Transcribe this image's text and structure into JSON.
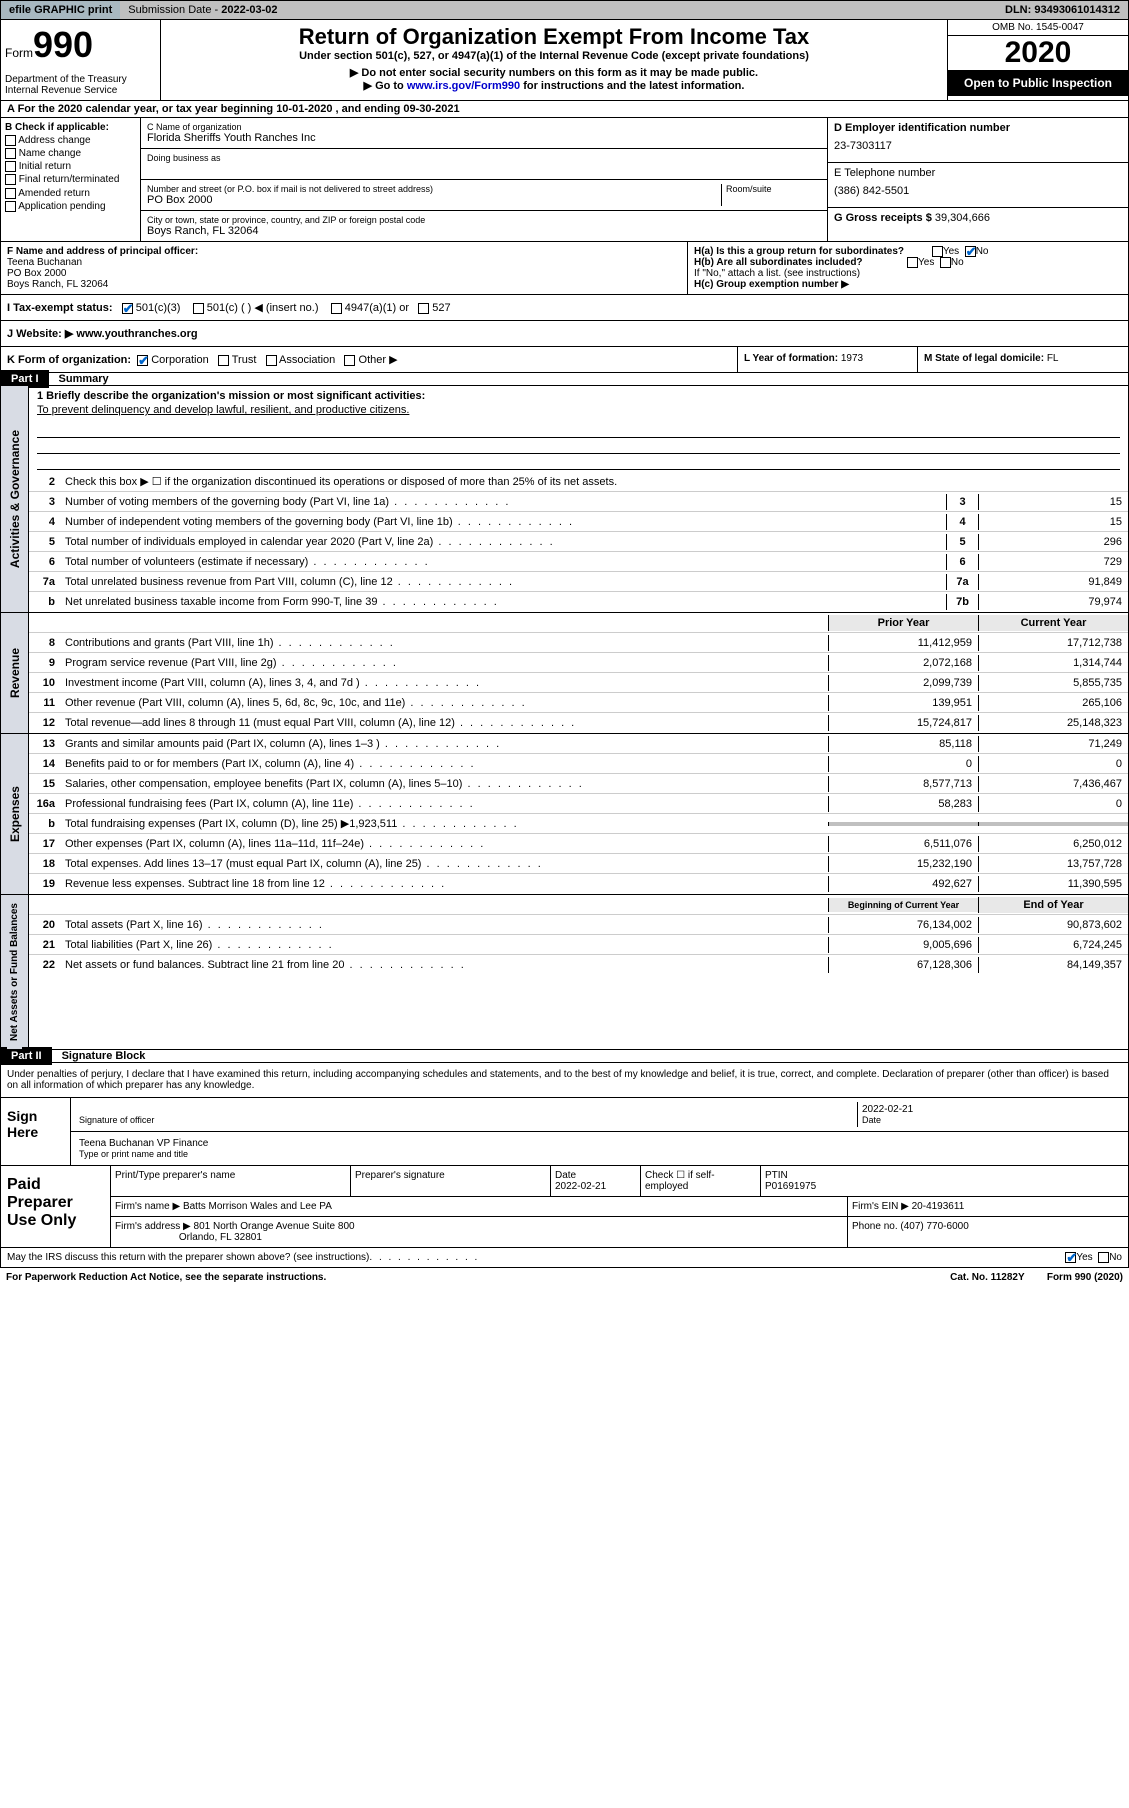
{
  "topbar": {
    "efile": "efile GRAPHIC print",
    "submission_label": "Submission Date - ",
    "submission_date": "2022-03-02",
    "dln_label": "DLN: ",
    "dln": "93493061014312"
  },
  "header": {
    "form_word": "Form",
    "form_num": "990",
    "dept": "Department of the Treasury\nInternal Revenue Service",
    "title": "Return of Organization Exempt From Income Tax",
    "sub1": "Under section 501(c), 527, or 4947(a)(1) of the Internal Revenue Code (except private foundations)",
    "sub2": "▶ Do not enter social security numbers on this form as it may be made public.",
    "sub3_pre": "▶ Go to ",
    "sub3_link": "www.irs.gov/Form990",
    "sub3_post": " for instructions and the latest information.",
    "omb": "OMB No. 1545-0047",
    "year": "2020",
    "open_pub": "Open to Public Inspection"
  },
  "row_a": "A   For the 2020 calendar year, or tax year beginning 10-01-2020     , and ending 09-30-2021",
  "col_b": {
    "title": "B Check if applicable:",
    "items": [
      "Address change",
      "Name change",
      "Initial return",
      "Final return/terminated",
      "Amended return",
      "Application pending"
    ]
  },
  "col_c": {
    "name_label": "C Name of organization",
    "name": "Florida Sheriffs Youth Ranches Inc",
    "dba_label": "Doing business as",
    "dba": "",
    "addr_label": "Number and street (or P.O. box if mail is not delivered to street address)",
    "room_label": "Room/suite",
    "addr": "PO Box 2000",
    "city_label": "City or town, state or province, country, and ZIP or foreign postal code",
    "city": "Boys Ranch, FL  32064"
  },
  "col_d": {
    "ein_label": "D Employer identification number",
    "ein": "23-7303117",
    "tel_label": "E Telephone number",
    "tel": "(386) 842-5501",
    "gross_label": "G Gross receipts $ ",
    "gross": "39,304,666"
  },
  "col_f": {
    "label": "F  Name and address of principal officer:",
    "name": "Teena Buchanan",
    "addr1": "PO Box 2000",
    "addr2": "Boys Ranch, FL  32064"
  },
  "col_h": {
    "ha": "H(a)  Is this a group return for subordinates?",
    "hb": "H(b)  Are all subordinates included?",
    "hb_note": "If \"No,\" attach a list. (see instructions)",
    "hc": "H(c)  Group exemption number ▶",
    "yes": "Yes",
    "no": "No"
  },
  "tax_exempt": {
    "label": "I    Tax-exempt status:",
    "opt1": "501(c)(3)",
    "opt2": "501(c) (  ) ◀ (insert no.)",
    "opt3": "4947(a)(1) or",
    "opt4": "527"
  },
  "website": {
    "label": "J    Website: ▶",
    "value": "  www.youthranches.org"
  },
  "kl": {
    "k": "K Form of organization:",
    "k_opts": [
      "Corporation",
      "Trust",
      "Association",
      "Other ▶"
    ],
    "l_label": "L Year of formation: ",
    "l_val": "1973",
    "m_label": "M State of legal domicile: ",
    "m_val": "FL"
  },
  "part1": {
    "header_num": "Part I",
    "header_text": "Summary",
    "line1_label": "1   Briefly describe the organization's mission or most significant activities:",
    "line1_text": "To prevent delinquency and develop lawful, resilient, and productive citizens.",
    "line2": "Check this box ▶ ☐  if the organization discontinued its operations or disposed of more than 25% of its net assets.",
    "lines_gov": [
      {
        "n": "3",
        "d": "Number of voting members of the governing body (Part VI, line 1a)",
        "box": "3",
        "v": "15"
      },
      {
        "n": "4",
        "d": "Number of independent voting members of the governing body (Part VI, line 1b)",
        "box": "4",
        "v": "15"
      },
      {
        "n": "5",
        "d": "Total number of individuals employed in calendar year 2020 (Part V, line 2a)",
        "box": "5",
        "v": "296"
      },
      {
        "n": "6",
        "d": "Total number of volunteers (estimate if necessary)",
        "box": "6",
        "v": "729"
      },
      {
        "n": "7a",
        "d": "Total unrelated business revenue from Part VIII, column (C), line 12",
        "box": "7a",
        "v": "91,849"
      },
      {
        "n": "b",
        "d": "Net unrelated business taxable income from Form 990-T, line 39",
        "box": "7b",
        "v": "79,974"
      }
    ],
    "rev_hdr": {
      "py": "Prior Year",
      "cy": "Current Year"
    },
    "lines_rev": [
      {
        "n": "8",
        "d": "Contributions and grants (Part VIII, line 1h)",
        "py": "11,412,959",
        "cy": "17,712,738"
      },
      {
        "n": "9",
        "d": "Program service revenue (Part VIII, line 2g)",
        "py": "2,072,168",
        "cy": "1,314,744"
      },
      {
        "n": "10",
        "d": "Investment income (Part VIII, column (A), lines 3, 4, and 7d )",
        "py": "2,099,739",
        "cy": "5,855,735"
      },
      {
        "n": "11",
        "d": "Other revenue (Part VIII, column (A), lines 5, 6d, 8c, 9c, 10c, and 11e)",
        "py": "139,951",
        "cy": "265,106"
      },
      {
        "n": "12",
        "d": "Total revenue—add lines 8 through 11 (must equal Part VIII, column (A), line 12)",
        "py": "15,724,817",
        "cy": "25,148,323"
      }
    ],
    "lines_exp": [
      {
        "n": "13",
        "d": "Grants and similar amounts paid (Part IX, column (A), lines 1–3 )",
        "py": "85,118",
        "cy": "71,249"
      },
      {
        "n": "14",
        "d": "Benefits paid to or for members (Part IX, column (A), line 4)",
        "py": "0",
        "cy": "0"
      },
      {
        "n": "15",
        "d": "Salaries, other compensation, employee benefits (Part IX, column (A), lines 5–10)",
        "py": "8,577,713",
        "cy": "7,436,467"
      },
      {
        "n": "16a",
        "d": "Professional fundraising fees (Part IX, column (A), line 11e)",
        "py": "58,283",
        "cy": "0"
      },
      {
        "n": "b",
        "d": "Total fundraising expenses (Part IX, column (D), line 25) ▶1,923,511",
        "py": "",
        "cy": "",
        "shaded": true
      },
      {
        "n": "17",
        "d": "Other expenses (Part IX, column (A), lines 11a–11d, 11f–24e)",
        "py": "6,511,076",
        "cy": "6,250,012"
      },
      {
        "n": "18",
        "d": "Total expenses. Add lines 13–17 (must equal Part IX, column (A), line 25)",
        "py": "15,232,190",
        "cy": "13,757,728"
      },
      {
        "n": "19",
        "d": "Revenue less expenses. Subtract line 18 from line 12",
        "py": "492,627",
        "cy": "11,390,595"
      }
    ],
    "na_hdr": {
      "py": "Beginning of Current Year",
      "cy": "End of Year"
    },
    "lines_na": [
      {
        "n": "20",
        "d": "Total assets (Part X, line 16)",
        "py": "76,134,002",
        "cy": "90,873,602"
      },
      {
        "n": "21",
        "d": "Total liabilities (Part X, line 26)",
        "py": "9,005,696",
        "cy": "6,724,245"
      },
      {
        "n": "22",
        "d": "Net assets or fund balances. Subtract line 21 from line 20",
        "py": "67,128,306",
        "cy": "84,149,357"
      }
    ],
    "side_gov": "Activities & Governance",
    "side_rev": "Revenue",
    "side_exp": "Expenses",
    "side_na": "Net Assets or Fund Balances"
  },
  "part2": {
    "header_num": "Part II",
    "header_text": "Signature Block",
    "perjury": "Under penalties of perjury, I declare that I have examined this return, including accompanying schedules and statements, and to the best of my knowledge and belief, it is true, correct, and complete. Declaration of preparer (other than officer) is based on all information of which preparer has any knowledge."
  },
  "sign": {
    "left": "Sign Here",
    "sig_label": "Signature of officer",
    "date_label": "Date",
    "date": "2022-02-21",
    "name": "Teena Buchanan  VP Finance",
    "name_label": "Type or print name and title"
  },
  "prep": {
    "left": "Paid Preparer Use Only",
    "print_label": "Print/Type preparer's name",
    "sig_label": "Preparer's signature",
    "date_label": "Date",
    "date": "2022-02-21",
    "check_label": "Check ☐ if self-employed",
    "ptin_label": "PTIN",
    "ptin": "P01691975",
    "firm_name_label": "Firm's name    ▶ ",
    "firm_name": "Batts Morrison Wales and Lee PA",
    "firm_ein_label": "Firm's EIN ▶ ",
    "firm_ein": "20-4193611",
    "firm_addr_label": "Firm's address ▶ ",
    "firm_addr1": "801 North Orange Avenue Suite 800",
    "firm_addr2": "Orlando, FL  32801",
    "phone_label": "Phone no. ",
    "phone": "(407) 770-6000"
  },
  "footer": {
    "discuss": "May the IRS discuss this return with the preparer shown above? (see instructions)",
    "yes": "Yes",
    "no": "No",
    "paperwork": "For Paperwork Reduction Act Notice, see the separate instructions.",
    "cat": "Cat. No. 11282Y",
    "form": "Form 990 (2020)"
  }
}
